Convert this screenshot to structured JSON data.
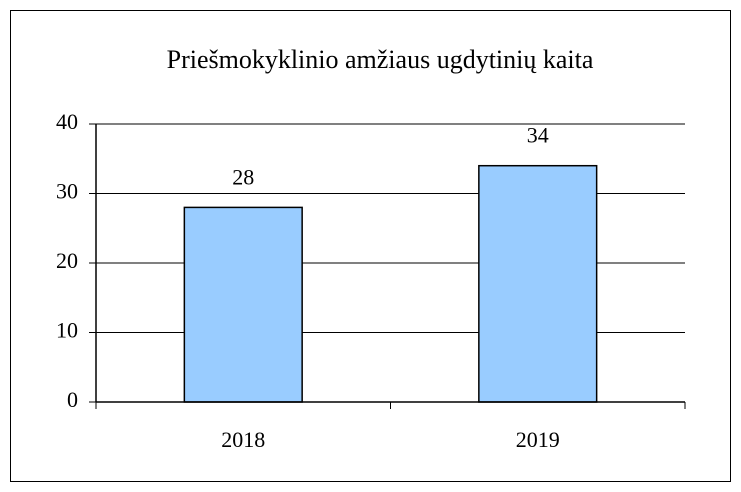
{
  "chart_data": {
    "type": "bar",
    "title": "Priešmokyklinio amžiaus ugdytinių kaita",
    "categories": [
      "2018",
      "2019"
    ],
    "values": [
      28,
      34
    ],
    "color": "#99ccff",
    "ylim": [
      0,
      40
    ],
    "yticks": [
      0,
      10,
      20,
      30,
      40
    ],
    "grid": true,
    "data_labels": true
  }
}
